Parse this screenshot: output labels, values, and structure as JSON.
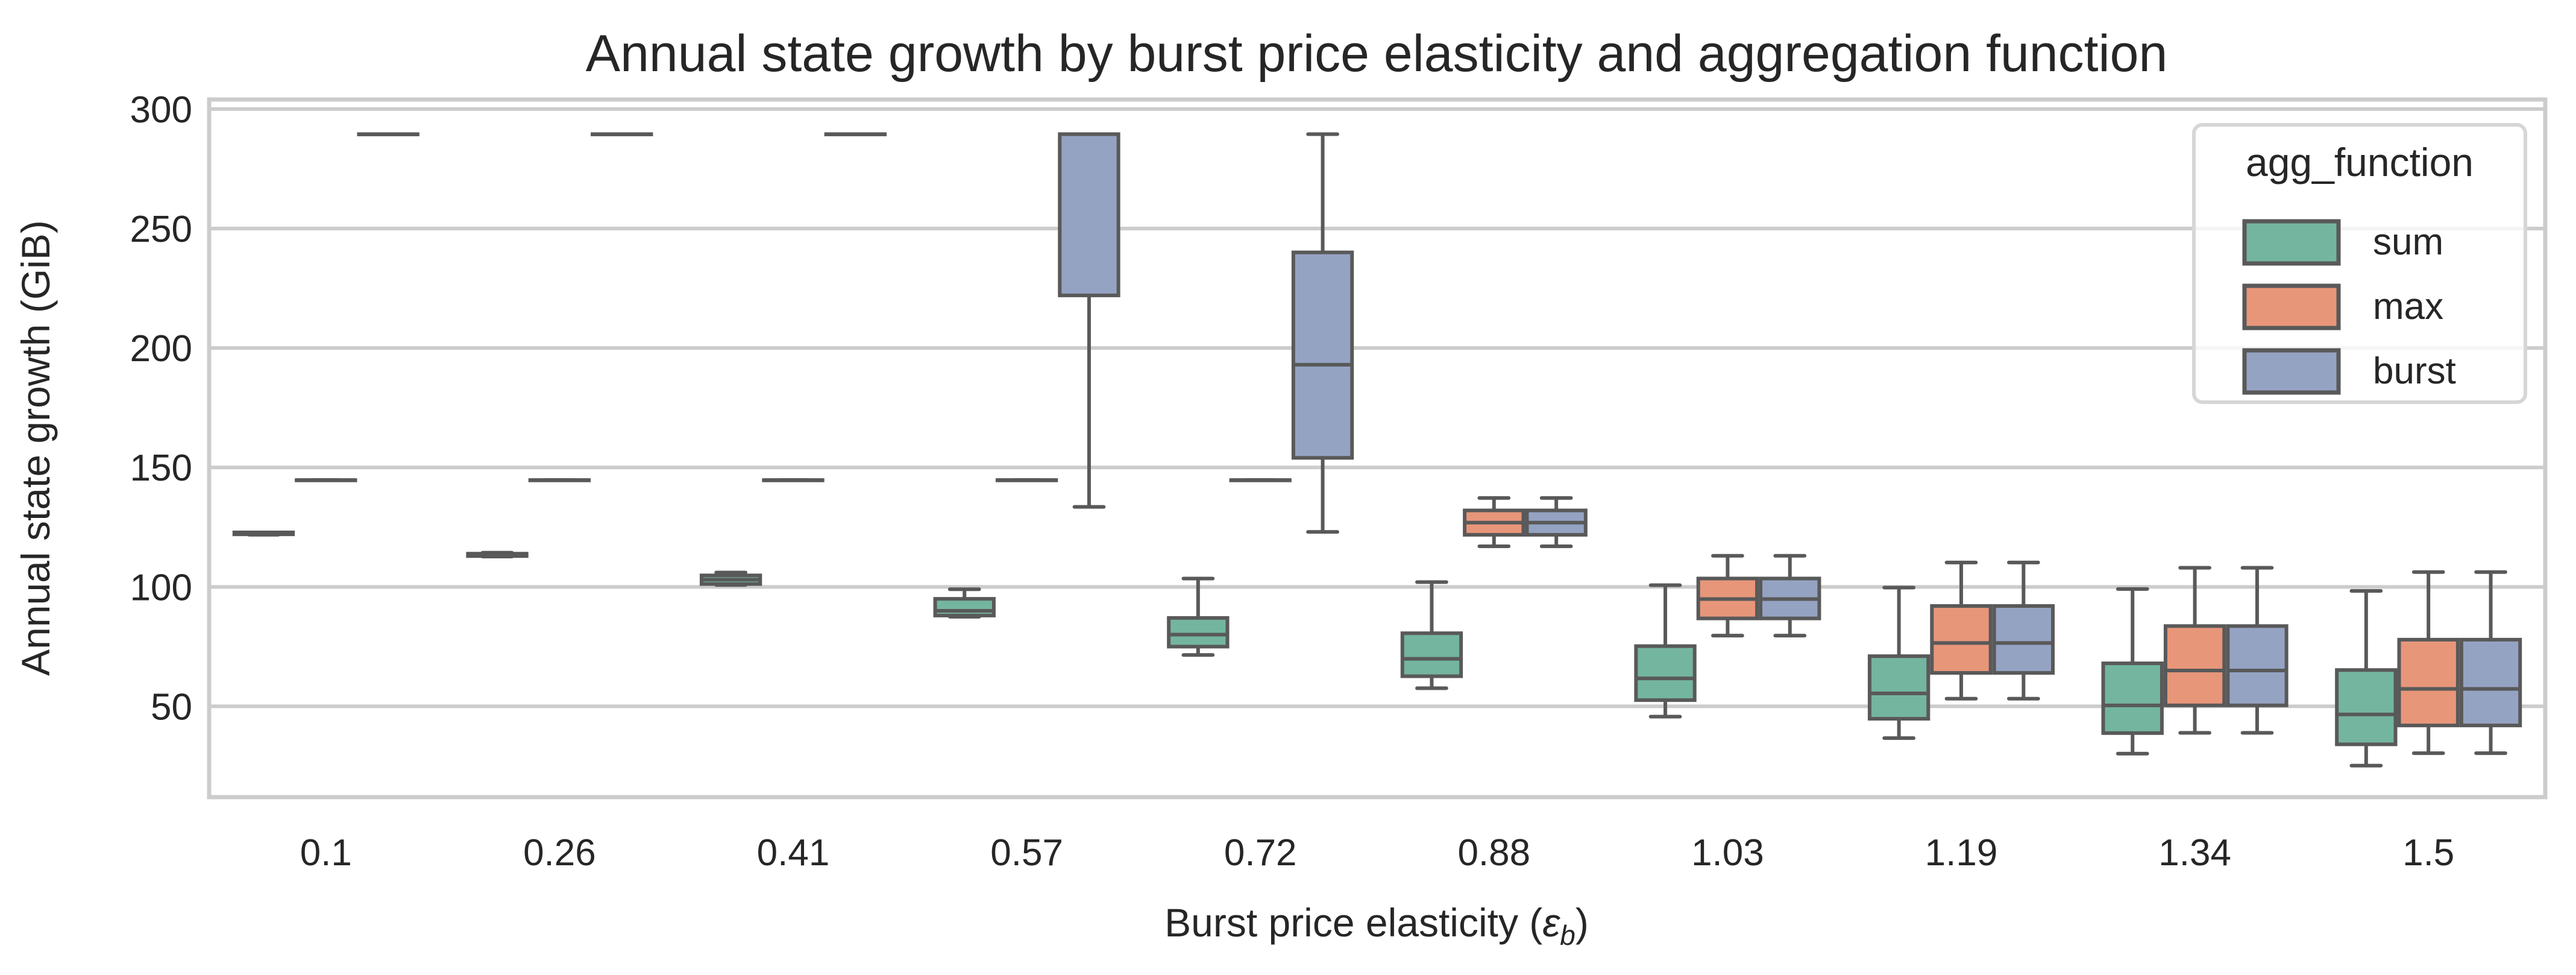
{
  "chart_data": {
    "type": "box",
    "title": "Annual state growth by burst price elasticity and aggregation function",
    "xlabel": "Burst price elasticity (ε_b)",
    "xlabel_parts": {
      "prefix": "Burst price elasticity (",
      "symbol": "ε",
      "subscript": "b",
      "suffix": ")"
    },
    "ylabel": "Annual state growth (GiB)",
    "ylim": [
      12,
      304
    ],
    "yticks": [
      50,
      100,
      150,
      200,
      250,
      300
    ],
    "grid": true,
    "categories": [
      "0.1",
      "0.26",
      "0.41",
      "0.57",
      "0.72",
      "0.88",
      "1.03",
      "1.19",
      "1.34",
      "1.5"
    ],
    "legend": {
      "title": "agg_function",
      "position": "top-right"
    },
    "series": [
      {
        "name": "sum",
        "color": "#74b5a0",
        "boxes": [
          {
            "whislo": 121.8,
            "q1": 122.0,
            "med": 122.3,
            "q3": 122.8,
            "whishi": 122.8
          },
          {
            "whislo": 112.7,
            "q1": 112.9,
            "med": 113.3,
            "q3": 113.9,
            "whishi": 114.3
          },
          {
            "whislo": 100.8,
            "q1": 101.2,
            "med": 103.0,
            "q3": 104.8,
            "whishi": 106.0
          },
          {
            "whislo": 87.5,
            "q1": 88.0,
            "med": 90.0,
            "q3": 95.0,
            "whishi": 99.0
          },
          {
            "whislo": 71.5,
            "q1": 75.0,
            "med": 80.0,
            "q3": 87.0,
            "whishi": 103.5
          },
          {
            "whislo": 57.6,
            "q1": 62.6,
            "med": 69.9,
            "q3": 80.6,
            "whishi": 102.0
          },
          {
            "whislo": 45.7,
            "q1": 52.6,
            "med": 61.7,
            "q3": 75.2,
            "whishi": 100.7
          },
          {
            "whislo": 36.7,
            "q1": 44.8,
            "med": 55.4,
            "q3": 71.0,
            "whishi": 99.7
          },
          {
            "whislo": 30.2,
            "q1": 38.8,
            "med": 50.4,
            "q3": 68.0,
            "whishi": 99.1
          },
          {
            "whislo": 25.2,
            "q1": 34.1,
            "med": 46.6,
            "q3": 65.2,
            "whishi": 98.3
          }
        ]
      },
      {
        "name": "max",
        "color": "#e8967a",
        "boxes": [
          {
            "whislo": 144.7,
            "q1": 144.7,
            "med": 144.7,
            "q3": 144.7,
            "whishi": 144.7
          },
          {
            "whislo": 144.7,
            "q1": 144.7,
            "med": 144.7,
            "q3": 144.7,
            "whishi": 144.7
          },
          {
            "whislo": 144.7,
            "q1": 144.7,
            "med": 144.7,
            "q3": 144.7,
            "whishi": 144.7
          },
          {
            "whislo": 144.7,
            "q1": 144.7,
            "med": 144.7,
            "q3": 144.7,
            "whishi": 144.7
          },
          {
            "whislo": 144.7,
            "q1": 144.7,
            "med": 144.7,
            "q3": 144.7,
            "whishi": 144.7
          },
          {
            "whislo": 117.0,
            "q1": 121.8,
            "med": 126.9,
            "q3": 132.0,
            "whishi": 137.2
          },
          {
            "whislo": 79.6,
            "q1": 86.8,
            "med": 94.9,
            "q3": 103.5,
            "whishi": 113.0
          },
          {
            "whislo": 53.2,
            "q1": 64.0,
            "med": 76.5,
            "q3": 92.0,
            "whishi": 110.2
          },
          {
            "whislo": 38.9,
            "q1": 50.4,
            "med": 65.0,
            "q3": 83.6,
            "whishi": 108.0
          },
          {
            "whislo": 30.4,
            "q1": 42.0,
            "med": 57.3,
            "q3": 77.9,
            "whishi": 106.2
          }
        ]
      },
      {
        "name": "burst",
        "color": "#95a3c3",
        "boxes": [
          {
            "whislo": 289.5,
            "q1": 289.5,
            "med": 289.5,
            "q3": 289.5,
            "whishi": 289.5
          },
          {
            "whislo": 289.5,
            "q1": 289.5,
            "med": 289.5,
            "q3": 289.5,
            "whishi": 289.5
          },
          {
            "whislo": 289.5,
            "q1": 289.5,
            "med": 289.5,
            "q3": 289.5,
            "whishi": 289.5
          },
          {
            "whislo": 133.5,
            "q1": 222.0,
            "med": 289.5,
            "q3": 289.5,
            "whishi": 289.5
          },
          {
            "whislo": 123.0,
            "q1": 154.0,
            "med": 193.0,
            "q3": 240.0,
            "whishi": 289.5
          },
          {
            "whislo": 117.0,
            "q1": 121.8,
            "med": 126.9,
            "q3": 132.0,
            "whishi": 137.2
          },
          {
            "whislo": 79.6,
            "q1": 86.8,
            "med": 94.9,
            "q3": 103.5,
            "whishi": 113.0
          },
          {
            "whislo": 53.2,
            "q1": 64.0,
            "med": 76.5,
            "q3": 92.0,
            "whishi": 110.2
          },
          {
            "whislo": 38.9,
            "q1": 50.4,
            "med": 65.0,
            "q3": 83.6,
            "whishi": 108.0
          },
          {
            "whislo": 30.4,
            "q1": 42.0,
            "med": 57.3,
            "q3": 77.9,
            "whishi": 106.2
          }
        ]
      }
    ],
    "edge_color": "#595959",
    "grid_color": "#cccccc"
  }
}
